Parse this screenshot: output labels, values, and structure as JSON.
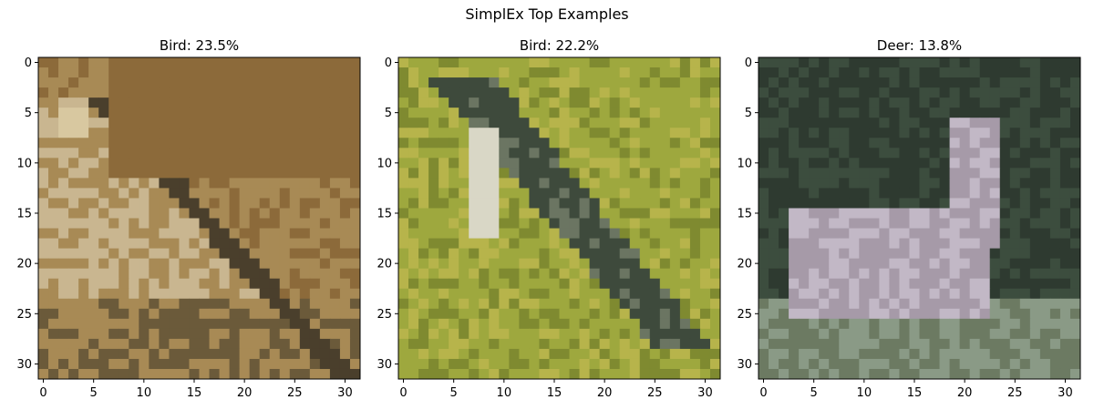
{
  "chart_data": {
    "type": "image_grid",
    "title": "SimplEx Top Examples",
    "axis_ticks": [
      0,
      5,
      10,
      15,
      20,
      25,
      30
    ],
    "image_size": [
      32,
      32
    ],
    "panels": [
      {
        "title": "Bird: 23.5%",
        "label": "Bird",
        "value_percent": 23.5,
        "palette": [
          "#8c6a3a",
          "#a88a55",
          "#c9b690",
          "#6b5a3a",
          "#d8c8a0",
          "#4a3f2c"
        ]
      },
      {
        "title": "Bird: 22.2%",
        "label": "Bird",
        "value_percent": 22.2,
        "palette": [
          "#9ea83e",
          "#b7b44b",
          "#3e4a3c",
          "#6b7562",
          "#d9d7c6",
          "#7f8a30"
        ]
      },
      {
        "title": "Deer: 13.8%",
        "label": "Deer",
        "value_percent": 13.8,
        "palette": [
          "#2e3a30",
          "#3c4d3e",
          "#a69aa8",
          "#c2b8c6",
          "#6c7a62",
          "#8a9a86"
        ]
      }
    ]
  }
}
